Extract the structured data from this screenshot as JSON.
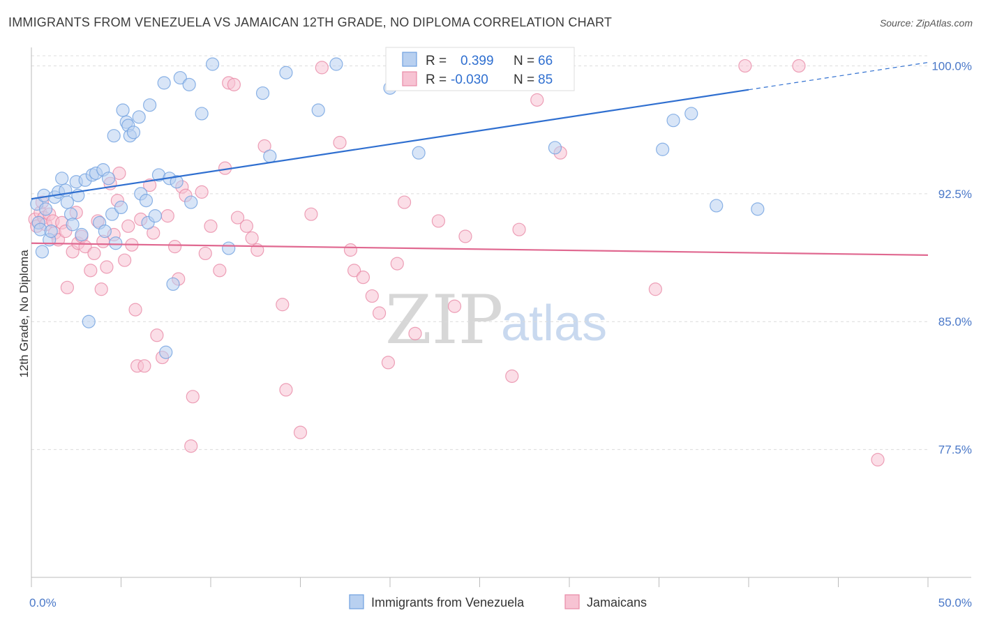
{
  "title": "IMMIGRANTS FROM VENEZUELA VS JAMAICAN 12TH GRADE, NO DIPLOMA CORRELATION CHART",
  "source": "Source: ZipAtlas.com",
  "watermark": {
    "zip": "ZIP",
    "atlas": "atlas"
  },
  "legend": {
    "r_label": "R =",
    "n_label": "N =",
    "rows": [
      {
        "r": "0.399",
        "n": "66",
        "color": "#6fa0e0",
        "fill": "#b8d0f0"
      },
      {
        "r": "-0.030",
        "n": "85",
        "color": "#e88aa6",
        "fill": "#f7c3d3"
      }
    ]
  },
  "chart_data": {
    "type": "scatter",
    "xlabel": "",
    "ylabel": "12th Grade, No Diploma",
    "xlim": [
      0,
      50
    ],
    "ylim": [
      70.0,
      101.0
    ],
    "x_tick_labels": [
      "0.0%",
      "50.0%"
    ],
    "y_ticks": [
      77.5,
      85.0,
      92.5,
      100.0
    ],
    "y_tick_labels": [
      "77.5%",
      "85.0%",
      "92.5%",
      "100.0%"
    ],
    "grid": true,
    "series": [
      {
        "name": "Immigrants from Venezuela",
        "color": "#6fa0e0",
        "fill": "#b8d0f0",
        "trend": {
          "x0": 0,
          "y0": 92.2,
          "x1": 40,
          "y1": 98.6,
          "dash_to_x": 50,
          "dash_to_y": 100.2
        },
        "points": [
          [
            0.3,
            91.9
          ],
          [
            0.4,
            90.8
          ],
          [
            0.5,
            90.4
          ],
          [
            0.6,
            89.1
          ],
          [
            0.7,
            92.4
          ],
          [
            0.8,
            91.6
          ],
          [
            1.0,
            89.8
          ],
          [
            1.1,
            90.3
          ],
          [
            1.3,
            92.3
          ],
          [
            1.5,
            92.6
          ],
          [
            1.7,
            93.4
          ],
          [
            1.9,
            92.7
          ],
          [
            2.0,
            92.0
          ],
          [
            2.2,
            91.3
          ],
          [
            2.3,
            90.7
          ],
          [
            2.5,
            93.2
          ],
          [
            2.6,
            92.4
          ],
          [
            2.8,
            90.1
          ],
          [
            3.0,
            93.3
          ],
          [
            3.2,
            85.0
          ],
          [
            3.4,
            93.6
          ],
          [
            3.6,
            93.7
          ],
          [
            3.8,
            90.8
          ],
          [
            4.0,
            93.9
          ],
          [
            4.1,
            90.3
          ],
          [
            4.3,
            93.4
          ],
          [
            4.5,
            91.3
          ],
          [
            4.6,
            95.9
          ],
          [
            4.7,
            89.6
          ],
          [
            5.0,
            91.7
          ],
          [
            5.1,
            97.4
          ],
          [
            5.3,
            96.7
          ],
          [
            5.4,
            96.5
          ],
          [
            5.5,
            95.9
          ],
          [
            5.7,
            96.1
          ],
          [
            6.0,
            97.0
          ],
          [
            6.1,
            92.5
          ],
          [
            6.4,
            92.1
          ],
          [
            6.5,
            90.8
          ],
          [
            6.6,
            97.7
          ],
          [
            6.9,
            91.2
          ],
          [
            7.1,
            93.6
          ],
          [
            7.4,
            99.0
          ],
          [
            7.5,
            83.2
          ],
          [
            7.7,
            93.4
          ],
          [
            7.9,
            87.2
          ],
          [
            8.1,
            93.2
          ],
          [
            8.3,
            99.3
          ],
          [
            8.8,
            98.9
          ],
          [
            8.9,
            92.0
          ],
          [
            9.5,
            97.2
          ],
          [
            10.1,
            100.1
          ],
          [
            11.0,
            89.3
          ],
          [
            12.9,
            98.4
          ],
          [
            13.3,
            94.7
          ],
          [
            14.2,
            99.6
          ],
          [
            16.0,
            97.4
          ],
          [
            17.0,
            100.1
          ],
          [
            20.0,
            98.7
          ],
          [
            21.6,
            94.9
          ],
          [
            29.2,
            95.2
          ],
          [
            35.2,
            95.1
          ],
          [
            35.8,
            96.8
          ],
          [
            36.8,
            97.2
          ],
          [
            38.2,
            91.8
          ],
          [
            40.5,
            91.6
          ]
        ]
      },
      {
        "name": "Jamaicans",
        "color": "#e88aa6",
        "fill": "#f7c3d3",
        "trend": {
          "x0": 0,
          "y0": 89.6,
          "x1": 50,
          "y1": 88.9
        },
        "points": [
          [
            0.2,
            91.0
          ],
          [
            0.3,
            90.6
          ],
          [
            0.5,
            91.4
          ],
          [
            0.6,
            92.0
          ],
          [
            0.7,
            91.1
          ],
          [
            0.8,
            90.7
          ],
          [
            1.0,
            91.3
          ],
          [
            1.2,
            90.9
          ],
          [
            1.3,
            90.2
          ],
          [
            1.5,
            89.8
          ],
          [
            1.7,
            90.8
          ],
          [
            1.9,
            90.3
          ],
          [
            2.0,
            87.0
          ],
          [
            2.3,
            89.1
          ],
          [
            2.5,
            91.4
          ],
          [
            2.6,
            89.6
          ],
          [
            2.8,
            90.0
          ],
          [
            3.0,
            89.4
          ],
          [
            3.3,
            88.0
          ],
          [
            3.5,
            89.0
          ],
          [
            3.7,
            90.9
          ],
          [
            3.9,
            86.9
          ],
          [
            4.0,
            89.7
          ],
          [
            4.2,
            88.2
          ],
          [
            4.4,
            93.1
          ],
          [
            4.6,
            90.1
          ],
          [
            4.8,
            92.1
          ],
          [
            4.9,
            93.7
          ],
          [
            5.2,
            88.6
          ],
          [
            5.4,
            90.6
          ],
          [
            5.6,
            89.5
          ],
          [
            5.8,
            85.7
          ],
          [
            5.9,
            82.4
          ],
          [
            6.1,
            91.0
          ],
          [
            6.3,
            82.4
          ],
          [
            6.6,
            93.0
          ],
          [
            6.8,
            90.2
          ],
          [
            7.0,
            84.2
          ],
          [
            7.3,
            82.9
          ],
          [
            7.6,
            91.2
          ],
          [
            8.0,
            89.4
          ],
          [
            8.2,
            87.5
          ],
          [
            8.4,
            92.9
          ],
          [
            8.6,
            92.4
          ],
          [
            8.9,
            77.7
          ],
          [
            9.0,
            80.6
          ],
          [
            9.5,
            92.6
          ],
          [
            9.7,
            89.0
          ],
          [
            10.0,
            90.6
          ],
          [
            10.5,
            88.0
          ],
          [
            10.8,
            94.0
          ],
          [
            11.0,
            99.0
          ],
          [
            11.3,
            98.9
          ],
          [
            11.5,
            91.1
          ],
          [
            12.0,
            90.6
          ],
          [
            12.3,
            89.9
          ],
          [
            13.0,
            95.3
          ],
          [
            14.0,
            86.0
          ],
          [
            14.2,
            81.0
          ],
          [
            15.0,
            78.5
          ],
          [
            15.6,
            91.3
          ],
          [
            16.2,
            99.9
          ],
          [
            17.2,
            95.5
          ],
          [
            17.8,
            89.2
          ],
          [
            18.0,
            88.0
          ],
          [
            18.5,
            87.6
          ],
          [
            19.0,
            86.5
          ],
          [
            19.4,
            85.5
          ],
          [
            19.9,
            82.6
          ],
          [
            20.4,
            88.4
          ],
          [
            20.8,
            92.0
          ],
          [
            21.4,
            84.3
          ],
          [
            22.7,
            90.9
          ],
          [
            23.6,
            85.9
          ],
          [
            24.2,
            90.0
          ],
          [
            26.8,
            81.8
          ],
          [
            26.9,
            100.0
          ],
          [
            27.2,
            90.4
          ],
          [
            28.2,
            98.0
          ],
          [
            29.5,
            94.9
          ],
          [
            34.8,
            86.9
          ],
          [
            39.8,
            100.0
          ],
          [
            42.8,
            100.0
          ],
          [
            47.2,
            76.9
          ],
          [
            12.6,
            89.2
          ]
        ]
      }
    ]
  },
  "bottom_legend": [
    {
      "label": "Immigrants from Venezuela",
      "color": "#6fa0e0",
      "fill": "#b8d0f0"
    },
    {
      "label": "Jamaicans",
      "color": "#e88aa6",
      "fill": "#f7c3d3"
    }
  ]
}
